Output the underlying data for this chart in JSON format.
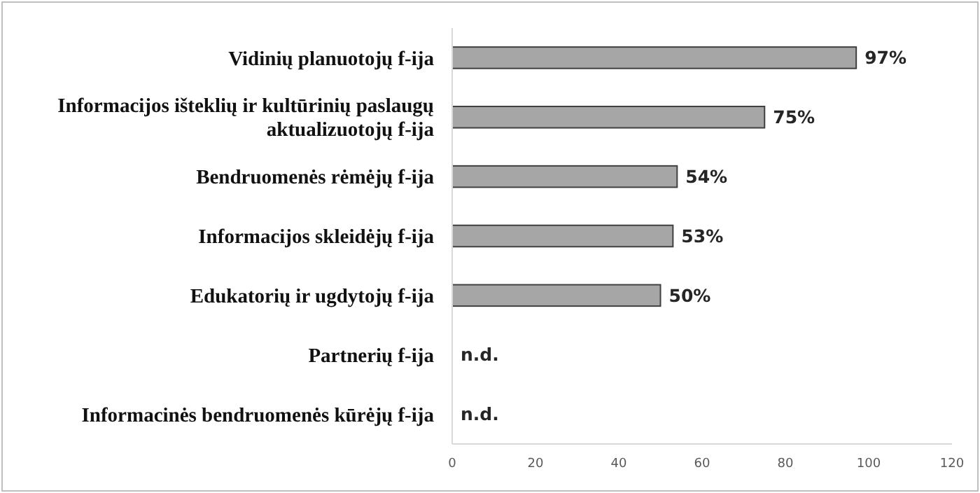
{
  "chart_data": {
    "type": "bar",
    "orientation": "horizontal",
    "categories": [
      "Vidinių planuotojų f-ija",
      "Informacijos išteklių ir kultūrinių paslaugų aktualizuotojų f-ija",
      "Bendruomenės rėmėjų f-ija",
      "Informacijos skleidėjų f-ija",
      "Edukatorių ir ugdytojų f-ija",
      "Partnerių f-ija",
      "Informacinės bendruomenės kūrėjų f-ija"
    ],
    "values": [
      97,
      75,
      54,
      53,
      50,
      null,
      null
    ],
    "value_labels": [
      "97%",
      "75%",
      "54%",
      "53%",
      "50%",
      "n.d.",
      "n.d."
    ],
    "color": "#a6a6a6",
    "xlim": [
      0,
      120
    ],
    "xticks": [
      0,
      20,
      40,
      60,
      80,
      100,
      120
    ]
  }
}
